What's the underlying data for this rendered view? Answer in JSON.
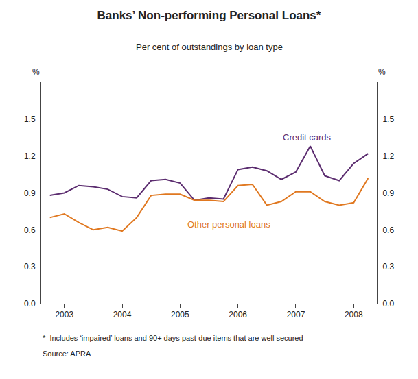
{
  "chart_data": {
    "type": "line",
    "title": "Banks’ Non-performing Personal Loans*",
    "subtitle": "Per cent of outstandings by loan type",
    "footnote": "*  Includes ‘impaired’ loans and 90+ days past-due items that are well secured",
    "source": "Source: APRA",
    "ylabel": "%",
    "y2label": "%",
    "x": [
      2002.75,
      2003.0,
      2003.25,
      2003.5,
      2003.75,
      2004.0,
      2004.25,
      2004.5,
      2004.75,
      2005.0,
      2005.25,
      2005.5,
      2005.75,
      2006.0,
      2006.25,
      2006.5,
      2006.75,
      2007.0,
      2007.25,
      2007.5,
      2007.75,
      2008.0,
      2008.25
    ],
    "series": [
      {
        "name": "Credit cards",
        "color": "#5B2C6F",
        "values": [
          0.88,
          0.9,
          0.96,
          0.95,
          0.93,
          0.87,
          0.86,
          1.0,
          1.01,
          0.98,
          0.84,
          0.86,
          0.85,
          1.09,
          1.11,
          1.08,
          1.01,
          1.07,
          1.28,
          1.04,
          1.0,
          1.14,
          1.22
        ]
      },
      {
        "name": "Other personal loans",
        "color": "#E07820",
        "values": [
          0.7,
          0.73,
          0.66,
          0.6,
          0.62,
          0.59,
          0.7,
          0.88,
          0.89,
          0.89,
          0.84,
          0.84,
          0.83,
          0.96,
          0.97,
          0.8,
          0.83,
          0.91,
          0.91,
          0.83,
          0.8,
          0.82,
          1.02
        ]
      }
    ],
    "annotations": [
      {
        "text": "Credit cards",
        "x": 2006.75,
        "y": 1.3,
        "color": "#5B2C6F"
      },
      {
        "text": "Other personal loans",
        "x": 2005.1,
        "y": 0.695,
        "color": "#E07820"
      }
    ],
    "xlim": [
      2002.6,
      2008.4
    ],
    "xticks": [
      2003,
      2004,
      2005,
      2006,
      2007,
      2008
    ],
    "ylim": [
      0.0,
      1.8
    ],
    "yticks": [
      {
        "value": 0.0,
        "label": "0.0"
      },
      0.3,
      0.6,
      0.9,
      1.2,
      1.5
    ],
    "y2lim": [
      0.0,
      1.8
    ],
    "y2ticks": [
      {
        "value": 0.0,
        "label": "0.0"
      },
      0.3,
      0.6,
      0.9,
      1.2,
      1.5
    ],
    "grid": "y"
  }
}
